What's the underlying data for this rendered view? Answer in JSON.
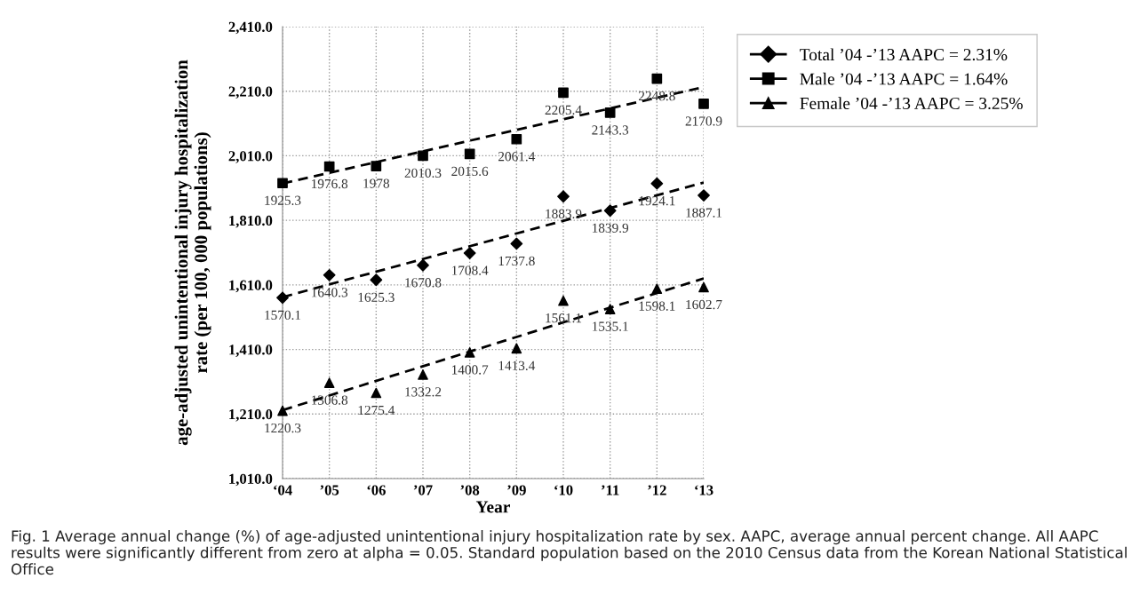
{
  "chart_data": {
    "type": "scatter",
    "xlabel": "Year",
    "ylabel": "age-adjusted unintentional injury hospitalization\nrate (per 100, 000 populations)",
    "categories": [
      "‘04",
      "’05",
      "‘06",
      "’07",
      "’08",
      "’09",
      "‘10",
      "’11",
      "’12",
      "‘13"
    ],
    "series": [
      {
        "name": "Total ’04 -’13 AAPC = 2.31%",
        "color": "#000000",
        "marker": "diamond",
        "data_labels": true,
        "values": [
          1570.1,
          1640.3,
          1625.3,
          1670.8,
          1708.4,
          1737.8,
          1883.9,
          1839.9,
          1924.1,
          1887.1
        ]
      },
      {
        "name": "Male ’04 -’13 AAPC = 1.64%",
        "color": "#000000",
        "marker": "square",
        "data_labels": true,
        "values": [
          1925.3,
          1976.8,
          1978,
          2010.3,
          2015.6,
          2061.4,
          2205.4,
          2143.3,
          2248.8,
          2170.9
        ]
      },
      {
        "name": "Female ’04 -’13 AAPC = 3.25%",
        "color": "#000000",
        "marker": "triangle",
        "data_labels": true,
        "values": [
          1220.3,
          1306.8,
          1275.4,
          1332.2,
          1400.7,
          1413.4,
          1561.1,
          1535.1,
          1598.1,
          1602.7
        ]
      },
      {
        "type": "line",
        "color": "#000000",
        "line_style": "dashed",
        "values": [
          1572,
          null,
          null,
          null,
          null,
          null,
          null,
          null,
          null,
          1927
        ]
      },
      {
        "type": "line",
        "color": "#000000",
        "line_style": "dashed",
        "values": [
          1924,
          null,
          null,
          null,
          null,
          null,
          null,
          null,
          null,
          2223
        ]
      },
      {
        "type": "line",
        "color": "#000000",
        "line_style": "dashed",
        "values": [
          1222,
          null,
          null,
          null,
          null,
          null,
          null,
          null,
          null,
          1630
        ]
      }
    ],
    "ylim": [
      1010,
      2410
    ],
    "yticks": [
      {
        "value": 1010,
        "label": "1,010.0"
      },
      {
        "value": 1210,
        "label": "1,210.0"
      },
      {
        "value": 1410,
        "label": "1,410.0"
      },
      {
        "value": 1610,
        "label": "1,610.0"
      },
      {
        "value": 1810,
        "label": "1,810.0"
      },
      {
        "value": 2010,
        "label": "2,010.0"
      },
      {
        "value": 2210,
        "label": "2,210.0"
      },
      {
        "value": 2410,
        "label": "2,410.0"
      }
    ],
    "grid": true,
    "legend": "top right",
    "annotations": [
      "Fig. 1 Average annual change (%) of age-adjusted unintentional injury hospitalization rate by sex. AAPC, average annual percent change. All AAPC results were significantly different from zero at alpha = 0.05. Standard population based on the 2010 Census data from the Korean National Statistical Office"
    ]
  }
}
